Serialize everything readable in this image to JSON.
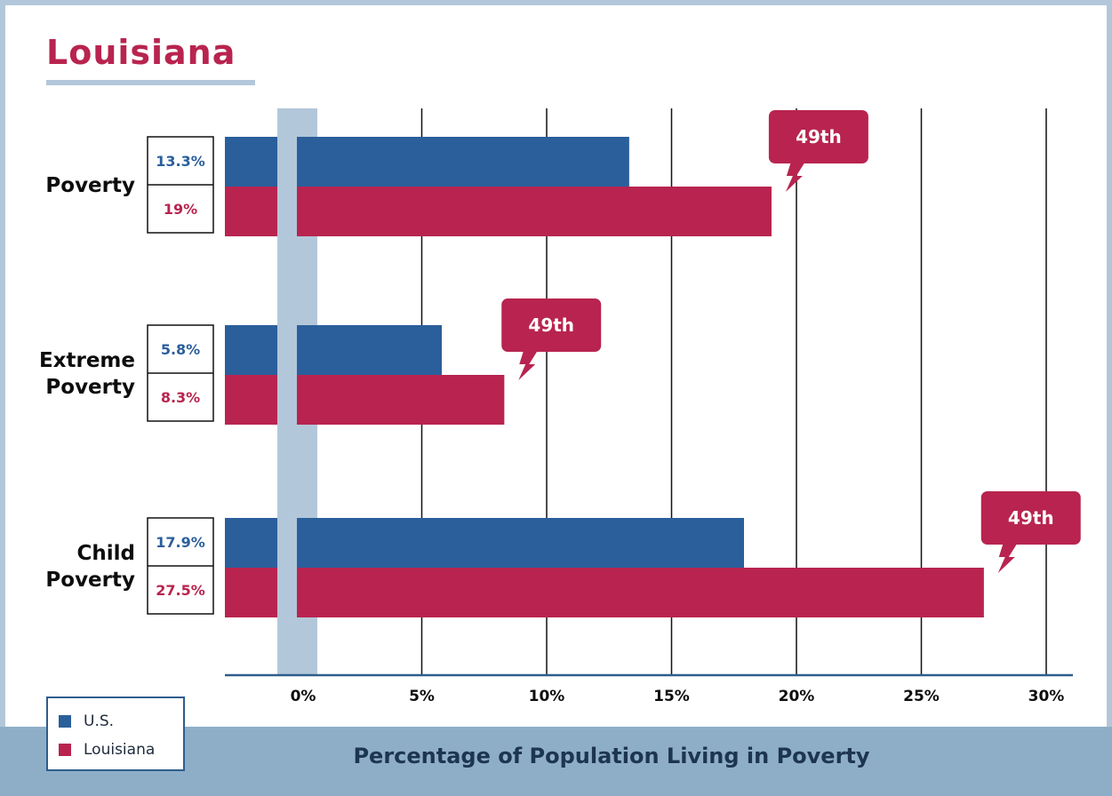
{
  "title": "Louisiana",
  "colors": {
    "us": "#2a5f9b",
    "state": "#b8244f",
    "grid": "#111111",
    "zero_band": "#b3c7da",
    "axis": "#2e5d8c",
    "footer": "#8eaec8"
  },
  "legend": [
    {
      "label": "U.S.",
      "color": "#2a5f9b"
    },
    {
      "label": "Louisiana",
      "color": "#b8244f"
    }
  ],
  "footer_caption": "Percentage of Population Living in Poverty",
  "chart_data": {
    "type": "bar",
    "orientation": "horizontal",
    "categories": [
      {
        "lines": [
          "Poverty"
        ]
      },
      {
        "lines": [
          "Extreme",
          "Poverty"
        ]
      },
      {
        "lines": [
          "Child",
          "Poverty"
        ]
      }
    ],
    "series": [
      {
        "name": "U.S.",
        "values": [
          13.3,
          5.8,
          17.9
        ],
        "labels": [
          "13.3%",
          "5.8%",
          "17.9%"
        ]
      },
      {
        "name": "Louisiana",
        "values": [
          19,
          8.3,
          27.5
        ],
        "labels": [
          "19%",
          "8.3%",
          "27.5%"
        ]
      }
    ],
    "rank_callouts": [
      "49th",
      "49th",
      "49th"
    ],
    "x_ticks": [
      "0%",
      "5%",
      "10%",
      "15%",
      "20%",
      "25%",
      "30%"
    ],
    "x_tick_values": [
      0,
      5,
      10,
      15,
      20,
      25,
      30
    ],
    "xlim": [
      0,
      30
    ],
    "xlabel": "Percentage of Population Living in Poverty",
    "grid": true,
    "legend_position": "bottom-left"
  }
}
